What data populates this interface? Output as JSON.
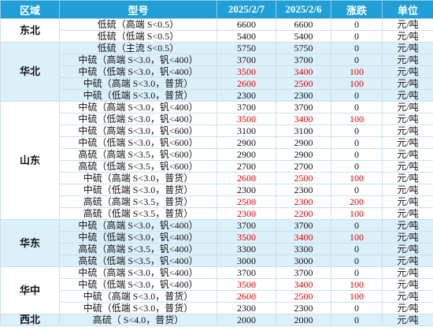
{
  "table": {
    "header": [
      "区域",
      "型号",
      "2025/2/7",
      "2025/2/6",
      "涨跌",
      "单位"
    ],
    "highlight_color": "#e00000",
    "groups": [
      {
        "region": "东北",
        "rows": [
          [
            "低硫（高端 S<0.5）",
            6600,
            6600,
            0,
            "元/吨"
          ],
          [
            "低硫（低端 S<0.5）",
            5400,
            5400,
            0,
            "元/吨"
          ]
        ]
      },
      {
        "region": "华北",
        "rows": [
          [
            "低硫（主流 S<0.5）",
            5750,
            5750,
            0,
            "元/吨"
          ],
          [
            "中硫（高端 S<3.0，钒<400）",
            3700,
            3700,
            0,
            "元/吨"
          ],
          [
            "中硫（低端 S<3.0，钒<400）",
            3500,
            3400,
            100,
            "元/吨"
          ],
          [
            "中硫（高端 S<3.0，普货）",
            2600,
            2500,
            100,
            "元/吨"
          ],
          [
            "中硫（低端 S<3.0，普货）",
            2300,
            2300,
            0,
            "元/吨"
          ]
        ]
      },
      {
        "region": "山东",
        "rows": [
          [
            "中硫（高端 S<3.0，钒<400）",
            3700,
            3700,
            0,
            "元/吨"
          ],
          [
            "中硫（低端 S<3.0，钒<400）",
            3500,
            3400,
            100,
            "元/吨"
          ],
          [
            "中硫（高端 S<3.0，钒<600）",
            3100,
            3100,
            0,
            "元/吨"
          ],
          [
            "中硫（低端 S<3.0，钒<600）",
            2900,
            2900,
            0,
            "元/吨"
          ],
          [
            "高硫（高端 S<3.5，钒<600）",
            2900,
            2900,
            0,
            "元/吨"
          ],
          [
            "高硫（低端 S<3.5，钒<600）",
            2700,
            2700,
            0,
            "元/吨"
          ],
          [
            "中硫（高端 S<3.0，普货）",
            2600,
            2500,
            100,
            "元/吨"
          ],
          [
            "中硫（低端 S<3.0，普货）",
            2300,
            2300,
            0,
            "元/吨"
          ],
          [
            "高硫（高端 S<3.5，普货）",
            2500,
            2300,
            200,
            "元/吨"
          ],
          [
            "高硫（低端 S<3.5，普货）",
            2300,
            2200,
            100,
            "元/吨"
          ]
        ]
      },
      {
        "region": "华东",
        "rows": [
          [
            "中硫（高端 S<3.0，钒<400）",
            3700,
            3700,
            0,
            "元/吨"
          ],
          [
            "中硫（低端 S<3.0，钒<400）",
            3500,
            3400,
            100,
            "元/吨"
          ],
          [
            "高硫（高端 S<3.5，钒<400）",
            3300,
            3300,
            0,
            "元/吨"
          ],
          [
            "高硫（低端 S<3.5，钒<400）",
            3000,
            3000,
            0,
            "元/吨"
          ]
        ]
      },
      {
        "region": "华中",
        "rows": [
          [
            "中硫（高端 S<3.0，钒<400）",
            3700,
            3700,
            0,
            "元/吨"
          ],
          [
            "中硫（低端 S<3.0，钒<400）",
            3500,
            3400,
            100,
            "元/吨"
          ],
          [
            "中硫（高端 S<3.0，普货）",
            2600,
            2500,
            100,
            "元/吨"
          ],
          [
            "中硫（低端 S<3.0，普货）",
            2300,
            2300,
            0,
            "元/吨"
          ]
        ]
      },
      {
        "region": "西北",
        "rows": [
          [
            "高硫（ S<4.0，普货）",
            2000,
            2000,
            0,
            "元/吨"
          ]
        ]
      }
    ]
  }
}
